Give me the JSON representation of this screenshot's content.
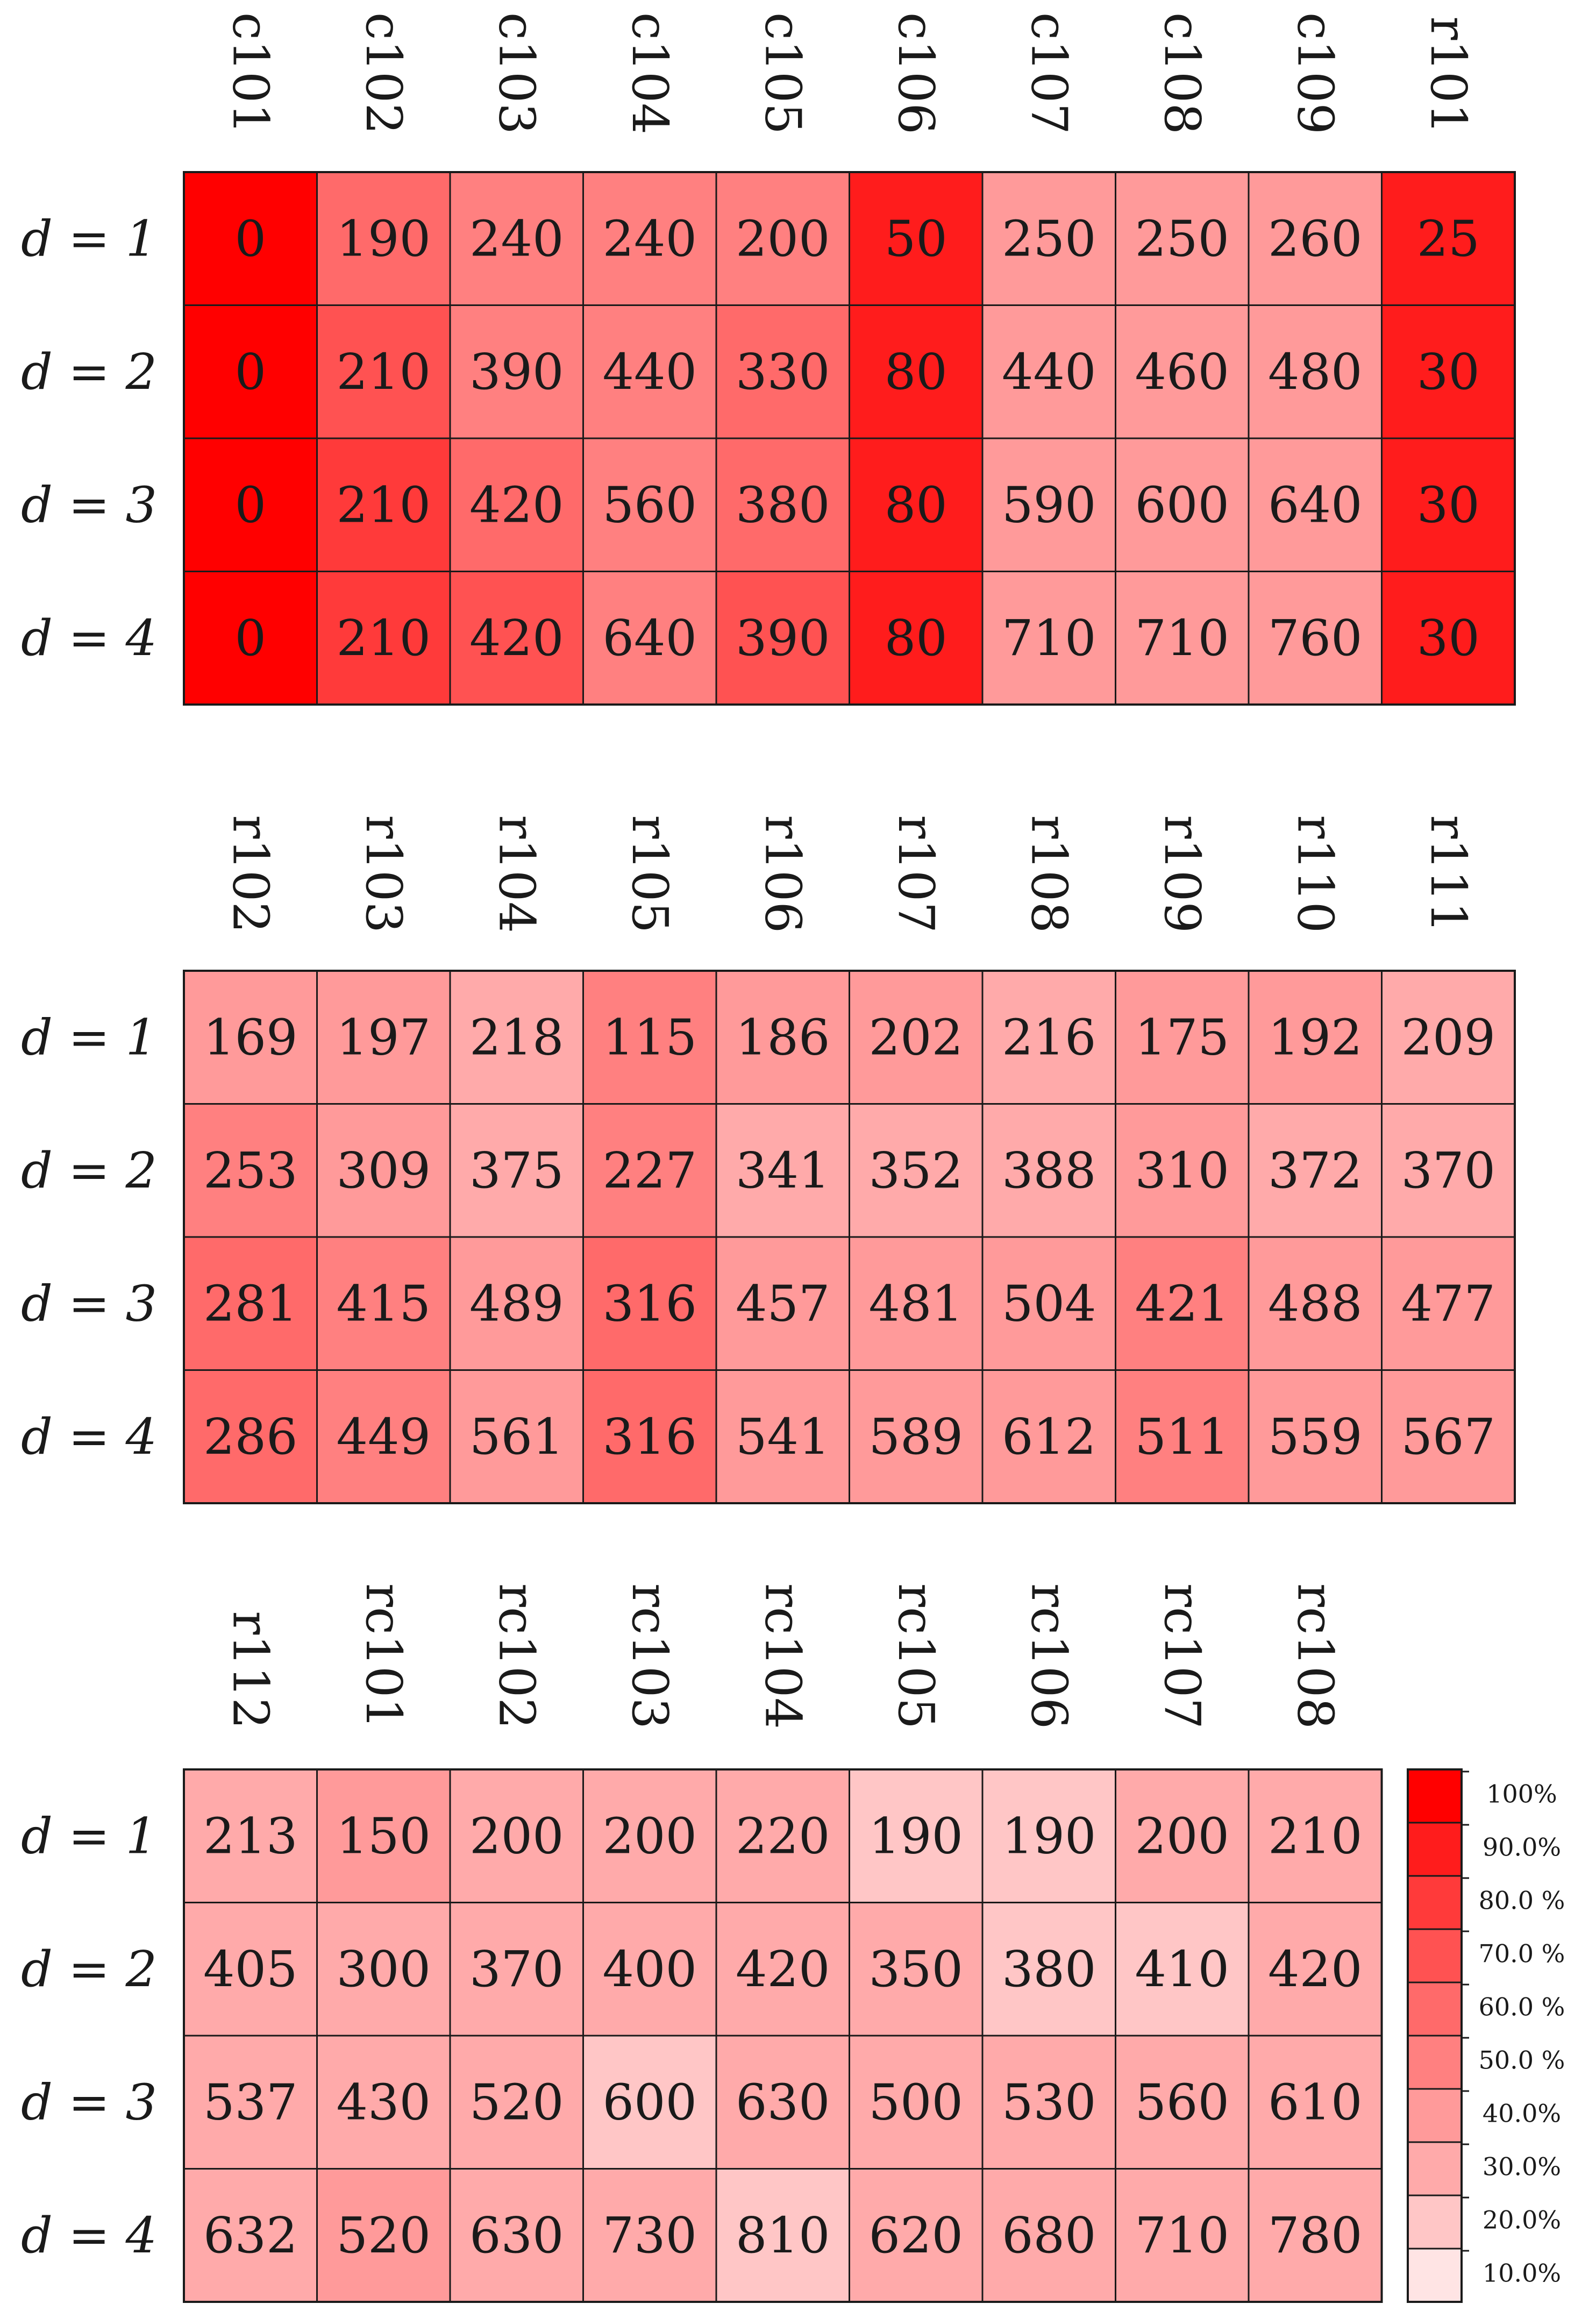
{
  "chart_data": [
    {
      "type": "heatmap",
      "rows": [
        "d = 1",
        "d = 2",
        "d = 3",
        "d = 4"
      ],
      "columns": [
        "c101",
        "c102",
        "c103",
        "c104",
        "c105",
        "c106",
        "c107",
        "c108",
        "c109",
        "r101"
      ],
      "values": [
        [
          0,
          190,
          240,
          240,
          200,
          50,
          250,
          250,
          260,
          25
        ],
        [
          0,
          210,
          390,
          440,
          330,
          80,
          440,
          460,
          480,
          30
        ],
        [
          0,
          210,
          420,
          560,
          380,
          80,
          590,
          600,
          640,
          30
        ],
        [
          0,
          210,
          420,
          640,
          390,
          80,
          710,
          710,
          760,
          30
        ]
      ],
      "shade_percent": [
        [
          100,
          60,
          50,
          50,
          50,
          90,
          40,
          40,
          40,
          90
        ],
        [
          100,
          70,
          50,
          50,
          60,
          90,
          40,
          40,
          40,
          90
        ],
        [
          100,
          80,
          60,
          50,
          60,
          90,
          40,
          40,
          40,
          90
        ],
        [
          100,
          80,
          70,
          50,
          70,
          90,
          40,
          40,
          40,
          90
        ]
      ]
    },
    {
      "type": "heatmap",
      "rows": [
        "d = 1",
        "d = 2",
        "d = 3",
        "d = 4"
      ],
      "columns": [
        "r102",
        "r103",
        "r104",
        "r105",
        "r106",
        "r107",
        "r108",
        "r109",
        "r110",
        "r111"
      ],
      "values": [
        [
          169,
          197,
          218,
          115,
          186,
          202,
          216,
          175,
          192,
          209
        ],
        [
          253,
          309,
          375,
          227,
          341,
          352,
          388,
          310,
          372,
          370
        ],
        [
          281,
          415,
          489,
          316,
          457,
          481,
          504,
          421,
          488,
          477
        ],
        [
          286,
          449,
          561,
          316,
          541,
          589,
          612,
          511,
          559,
          567
        ]
      ],
      "shade_percent": [
        [
          40,
          40,
          30,
          50,
          40,
          40,
          30,
          40,
          40,
          30
        ],
        [
          50,
          40,
          30,
          50,
          30,
          30,
          30,
          40,
          30,
          30
        ],
        [
          60,
          50,
          40,
          60,
          40,
          40,
          40,
          50,
          40,
          40
        ],
        [
          60,
          50,
          40,
          60,
          40,
          40,
          40,
          50,
          40,
          40
        ]
      ]
    },
    {
      "type": "heatmap",
      "rows": [
        "d = 1",
        "d = 2",
        "d = 3",
        "d = 4"
      ],
      "columns": [
        "r112",
        "rc101",
        "rc102",
        "rc103",
        "rc104",
        "rc105",
        "rc106",
        "rc107",
        "rc108"
      ],
      "values": [
        [
          213,
          150,
          200,
          200,
          220,
          190,
          190,
          200,
          210
        ],
        [
          405,
          300,
          370,
          400,
          420,
          350,
          380,
          410,
          420
        ],
        [
          537,
          430,
          520,
          600,
          630,
          500,
          530,
          560,
          610
        ],
        [
          632,
          520,
          630,
          730,
          810,
          620,
          680,
          710,
          780
        ]
      ],
      "shade_percent": [
        [
          30,
          40,
          30,
          30,
          30,
          20,
          20,
          30,
          30
        ],
        [
          30,
          30,
          30,
          30,
          30,
          30,
          20,
          20,
          30
        ],
        [
          30,
          30,
          30,
          20,
          30,
          30,
          30,
          30,
          30
        ],
        [
          30,
          40,
          30,
          30,
          20,
          30,
          30,
          30,
          30
        ]
      ]
    }
  ],
  "legend": {
    "labels": [
      "100%",
      "90.0%",
      "80.0 %",
      "70.0 %",
      "60.0 %",
      "50.0 %",
      "40.0%",
      "30.0%",
      "20.0%",
      "10.0%"
    ],
    "colors": [
      "#ff0000",
      "#ff1c1c",
      "#ff3a3a",
      "#ff5252",
      "#ff6a6a",
      "#ff8080",
      "#ff9a9a",
      "#ffaaaa",
      "#ffc6c6",
      "#ffe4e4"
    ]
  },
  "colors": {
    "100": "#ff0000",
    "90": "#ff1c1c",
    "80": "#ff3a3a",
    "70": "#ff5252",
    "60": "#ff6a6a",
    "50": "#ff8080",
    "40": "#ff9a9a",
    "30": "#ffaaaa",
    "20": "#ffc6c6",
    "10": "#ffe4e4"
  }
}
